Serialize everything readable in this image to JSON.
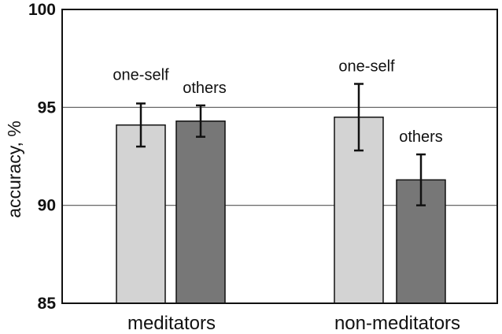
{
  "chart_data": {
    "type": "bar",
    "categories": [
      "meditators",
      "non-meditators"
    ],
    "ylabel": "accuracy, %",
    "ylim": [
      85,
      100
    ],
    "yticks": [
      "85",
      "90",
      "95",
      "100"
    ],
    "gridlines": [
      90,
      95
    ],
    "series": [
      {
        "name": "one-self",
        "color": "#d3d3d3",
        "values": [
          94.1,
          94.5
        ],
        "error_low": [
          93.0,
          92.8
        ],
        "error_high": [
          95.2,
          96.2
        ],
        "labels": [
          "one-self",
          "one-self"
        ]
      },
      {
        "name": "others",
        "color": "#777777",
        "values": [
          94.3,
          91.3
        ],
        "error_low": [
          93.5,
          90.0
        ],
        "error_high": [
          95.1,
          92.6
        ],
        "labels": [
          "others",
          "others"
        ]
      }
    ]
  }
}
